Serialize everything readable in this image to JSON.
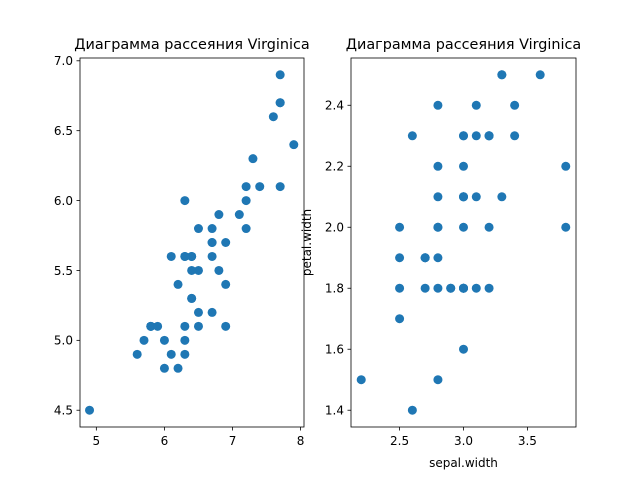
{
  "chart_data": [
    {
      "type": "scatter",
      "title": "Диаграмма рассеяния Virginica",
      "xlabel": "",
      "ylabel": "",
      "xlim": [
        4.76,
        8.05
      ],
      "ylim": [
        4.38,
        7.02
      ],
      "xticks": [
        5,
        6,
        7,
        8
      ],
      "yticks": [
        4.5,
        5.0,
        5.5,
        6.0,
        6.5,
        7.0
      ],
      "xtick_labels": [
        "5",
        "6",
        "7",
        "8"
      ],
      "ytick_labels": [
        "4.5",
        "5.0",
        "5.5",
        "6.0",
        "6.5",
        "7.0"
      ],
      "grid": false,
      "marker_color": "#1f77b4",
      "points": [
        [
          6.3,
          6.0
        ],
        [
          5.8,
          5.1
        ],
        [
          7.1,
          5.9
        ],
        [
          6.3,
          5.6
        ],
        [
          6.5,
          5.8
        ],
        [
          7.6,
          6.6
        ],
        [
          4.9,
          4.5
        ],
        [
          7.3,
          6.3
        ],
        [
          6.7,
          5.8
        ],
        [
          7.2,
          6.1
        ],
        [
          6.5,
          5.1
        ],
        [
          6.4,
          5.3
        ],
        [
          6.8,
          5.5
        ],
        [
          5.7,
          5.0
        ],
        [
          5.8,
          5.1
        ],
        [
          6.4,
          5.3
        ],
        [
          6.5,
          5.5
        ],
        [
          7.7,
          6.7
        ],
        [
          7.7,
          6.9
        ],
        [
          6.0,
          5.0
        ],
        [
          6.9,
          5.7
        ],
        [
          5.6,
          4.9
        ],
        [
          7.7,
          6.7
        ],
        [
          6.3,
          4.9
        ],
        [
          6.7,
          5.7
        ],
        [
          7.2,
          6.0
        ],
        [
          6.2,
          4.8
        ],
        [
          6.1,
          4.9
        ],
        [
          6.4,
          5.6
        ],
        [
          7.2,
          5.8
        ],
        [
          7.4,
          6.1
        ],
        [
          7.9,
          6.4
        ],
        [
          6.4,
          5.6
        ],
        [
          6.3,
          5.1
        ],
        [
          6.1,
          5.6
        ],
        [
          7.7,
          6.1
        ],
        [
          6.3,
          5.6
        ],
        [
          6.4,
          5.5
        ],
        [
          6.0,
          4.8
        ],
        [
          6.9,
          5.4
        ],
        [
          6.7,
          5.6
        ],
        [
          6.9,
          5.1
        ],
        [
          5.8,
          5.1
        ],
        [
          6.8,
          5.9
        ],
        [
          6.7,
          5.7
        ],
        [
          6.7,
          5.2
        ],
        [
          6.3,
          5.0
        ],
        [
          6.5,
          5.2
        ],
        [
          6.2,
          5.4
        ],
        [
          5.9,
          5.1
        ]
      ]
    },
    {
      "type": "scatter",
      "title": "Диаграмма рассеяния Virginica",
      "xlabel": "sepal.width",
      "ylabel": "petal.width",
      "xlim": [
        2.12,
        3.88
      ],
      "ylim": [
        1.345,
        2.555
      ],
      "xticks": [
        2.5,
        3.0,
        3.5
      ],
      "yticks": [
        1.4,
        1.6,
        1.8,
        2.0,
        2.2,
        2.4
      ],
      "xtick_labels": [
        "2.5",
        "3.0",
        "3.5"
      ],
      "ytick_labels": [
        "1.4",
        "1.6",
        "1.8",
        "2.0",
        "2.2",
        "2.4"
      ],
      "grid": false,
      "marker_color": "#1f77b4",
      "points": [
        [
          3.3,
          2.5
        ],
        [
          2.7,
          1.9
        ],
        [
          3.0,
          2.1
        ],
        [
          2.9,
          1.8
        ],
        [
          3.0,
          2.2
        ],
        [
          3.0,
          2.1
        ],
        [
          2.5,
          1.7
        ],
        [
          2.9,
          1.8
        ],
        [
          2.5,
          1.8
        ],
        [
          3.6,
          2.5
        ],
        [
          3.2,
          2.0
        ],
        [
          2.7,
          1.9
        ],
        [
          3.0,
          2.1
        ],
        [
          2.5,
          2.0
        ],
        [
          2.8,
          2.4
        ],
        [
          3.2,
          2.3
        ],
        [
          3.0,
          1.8
        ],
        [
          3.8,
          2.2
        ],
        [
          2.6,
          2.3
        ],
        [
          2.2,
          1.5
        ],
        [
          3.2,
          2.3
        ],
        [
          2.8,
          2.0
        ],
        [
          2.8,
          2.0
        ],
        [
          2.7,
          1.8
        ],
        [
          3.3,
          2.1
        ],
        [
          3.2,
          1.8
        ],
        [
          2.8,
          1.8
        ],
        [
          3.0,
          1.8
        ],
        [
          2.8,
          2.1
        ],
        [
          3.0,
          1.6
        ],
        [
          2.8,
          1.9
        ],
        [
          3.8,
          2.0
        ],
        [
          2.8,
          2.2
        ],
        [
          2.8,
          1.5
        ],
        [
          2.6,
          1.4
        ],
        [
          3.0,
          2.3
        ],
        [
          3.4,
          2.4
        ],
        [
          3.1,
          1.8
        ],
        [
          3.0,
          1.8
        ],
        [
          3.1,
          2.1
        ],
        [
          3.1,
          2.4
        ],
        [
          3.1,
          2.3
        ],
        [
          2.7,
          1.9
        ],
        [
          3.2,
          2.3
        ],
        [
          3.3,
          2.5
        ],
        [
          3.0,
          2.3
        ],
        [
          2.5,
          1.9
        ],
        [
          3.0,
          2.0
        ],
        [
          3.4,
          2.3
        ],
        [
          3.0,
          1.8
        ]
      ]
    }
  ]
}
